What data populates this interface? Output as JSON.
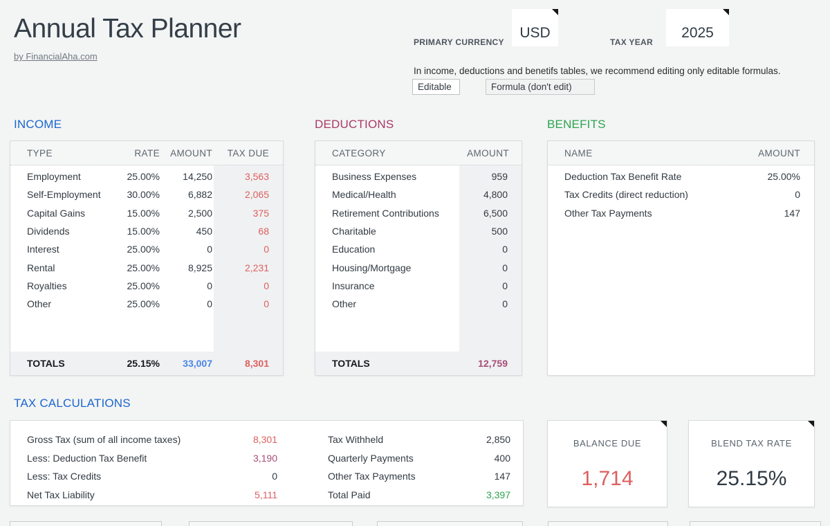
{
  "colors": {
    "blue": "#1b66cf",
    "blue_total": "#4a86e8",
    "maroon": "#a83a64",
    "maroon2": "#a64d79",
    "green": "#2ca44e",
    "red": "#dd5f5f",
    "dark": "#2f3a44",
    "muted": "#5c666e"
  },
  "header": {
    "title": "Annual Tax Planner",
    "byline": "by FinancialAha.com",
    "currency_label": "PRIMARY CURRENCY",
    "currency_value": "USD",
    "year_label": "TAX YEAR",
    "year_value": "2025",
    "note": "In income, deductions and benetifs tables, we recommend editing only editable formulas.",
    "legend_editable": "Editable",
    "legend_formula": "Formula (don't edit)"
  },
  "income": {
    "title": "INCOME",
    "columns": [
      "TYPE",
      "RATE",
      "AMOUNT",
      "TAX DUE"
    ],
    "rows": [
      {
        "type": "Employment",
        "rate": "25.00%",
        "amount": "14,250",
        "tax_due": "3,563"
      },
      {
        "type": "Self-Employment",
        "rate": "30.00%",
        "amount": "6,882",
        "tax_due": "2,065"
      },
      {
        "type": "Capital Gains",
        "rate": "15.00%",
        "amount": "2,500",
        "tax_due": "375"
      },
      {
        "type": "Dividends",
        "rate": "15.00%",
        "amount": "450",
        "tax_due": "68"
      },
      {
        "type": "Interest",
        "rate": "25.00%",
        "amount": "0",
        "tax_due": "0"
      },
      {
        "type": "Rental",
        "rate": "25.00%",
        "amount": "8,925",
        "tax_due": "2,231"
      },
      {
        "type": "Royalties",
        "rate": "25.00%",
        "amount": "0",
        "tax_due": "0"
      },
      {
        "type": "Other",
        "rate": "25.00%",
        "amount": "0",
        "tax_due": "0"
      }
    ],
    "totals": {
      "label": "TOTALS",
      "rate": "25.15%",
      "amount": "33,007",
      "tax_due": "8,301"
    }
  },
  "deductions": {
    "title": "DEDUCTIONS",
    "columns": [
      "CATEGORY",
      "AMOUNT"
    ],
    "rows": [
      {
        "category": "Business Expenses",
        "amount": "959"
      },
      {
        "category": "Medical/Health",
        "amount": "4,800"
      },
      {
        "category": "Retirement Contributions",
        "amount": "6,500"
      },
      {
        "category": "Charitable",
        "amount": "500"
      },
      {
        "category": "Education",
        "amount": "0"
      },
      {
        "category": "Housing/Mortgage",
        "amount": "0"
      },
      {
        "category": "Insurance",
        "amount": "0"
      },
      {
        "category": "Other",
        "amount": "0"
      }
    ],
    "totals": {
      "label": "TOTALS",
      "amount": "12,759"
    }
  },
  "benefits": {
    "title": "BENEFITS",
    "columns": [
      "NAME",
      "AMOUNT"
    ],
    "rows": [
      {
        "name": "Deduction Tax Benefit Rate",
        "amount": "25.00%"
      },
      {
        "name": "Tax Credits (direct reduction)",
        "amount": "0"
      },
      {
        "name": "Other Tax Payments",
        "amount": "147"
      }
    ]
  },
  "tax_calculations": {
    "title": "TAX CALCULATIONS",
    "left_rows": [
      {
        "label": "Gross Tax (sum of all income taxes)",
        "value": "8,301",
        "color": "red"
      },
      {
        "label": "Less: Deduction Tax Benefit",
        "value": "3,190",
        "color": "maroon"
      },
      {
        "label": "Less: Tax Credits",
        "value": "0",
        "color": "default"
      },
      {
        "label": "Net Tax Liability",
        "value": "5,111",
        "color": "red"
      }
    ],
    "right_rows": [
      {
        "label": "Tax Withheld",
        "value": "2,850",
        "color": "default"
      },
      {
        "label": "Quarterly Payments",
        "value": "400",
        "color": "default"
      },
      {
        "label": "Other Tax Payments",
        "value": "147",
        "color": "default"
      },
      {
        "label": "Total Paid",
        "value": "3,397",
        "color": "green"
      }
    ]
  },
  "summary_cards": {
    "balance": {
      "label": "BALANCE DUE",
      "value": "1,714"
    },
    "blend": {
      "label": "BLEND TAX RATE",
      "value": "25.15%"
    }
  }
}
